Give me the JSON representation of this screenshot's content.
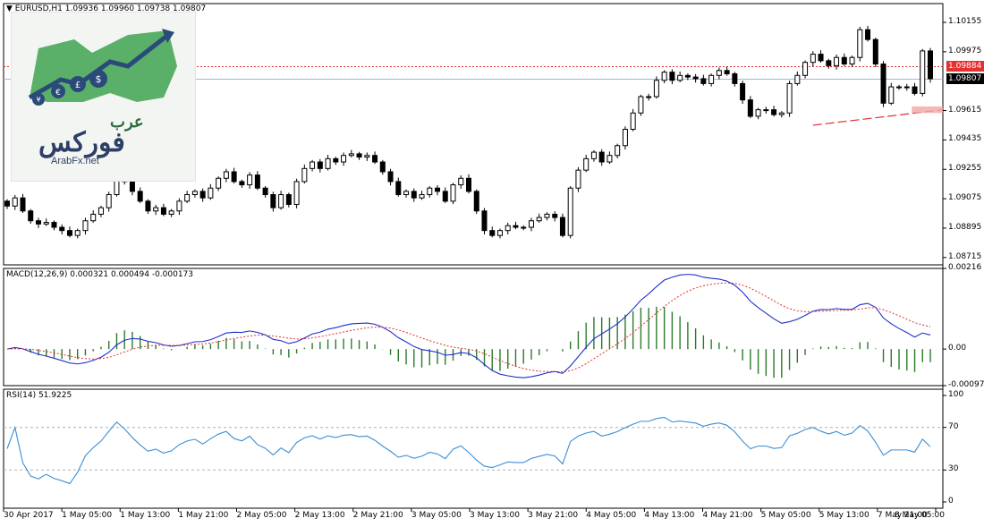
{
  "chart_header": {
    "text": "EURUSD,H1  1.09936 1.09960 1.09738 1.09807"
  },
  "macd_title": "MACD(12,26,9) 0.000321 0.000494 -0.000173",
  "rsi_title": "RSI(14) 51.9225",
  "logo": {
    "text_top": "عرب",
    "text_main": "فوركس",
    "url": "ArabFx.net"
  },
  "colors": {
    "bull": "#ffffff",
    "bear": "#000000",
    "macd_line": "#1f2fcc",
    "signal": "#e03030",
    "hist": "#2b7a2b",
    "rsi": "#3a8fd6",
    "hline_red": "#e03030",
    "bid": "#a9b7c6"
  },
  "chart_data": [
    {
      "type": "candlestick",
      "symbol": "EURUSD",
      "timeframe": "H1",
      "y_ticks": [
        "1.10155",
        "1.09975",
        "1.09615",
        "1.09435",
        "1.09255",
        "1.09075",
        "1.08895",
        "1.08715"
      ],
      "ylim": [
        1.0867,
        1.1027
      ],
      "x_ticks": [
        "30 Apr 2017",
        "1 May 05:00",
        "1 May 13:00",
        "1 May 21:00",
        "2 May 05:00",
        "2 May 13:00",
        "2 May 21:00",
        "3 May 05:00",
        "3 May 13:00",
        "3 May 21:00",
        "4 May 05:00",
        "4 May 13:00",
        "4 May 21:00",
        "5 May 05:00",
        "5 May 13:00",
        "7 May 21:00",
        "8 May 05:00"
      ],
      "price_tags": {
        "resistance": "1.09884",
        "current": "1.09807"
      },
      "closes": [
        1.0903,
        1.0908,
        1.09,
        1.0894,
        1.0892,
        1.0893,
        1.089,
        1.0888,
        1.0885,
        1.0888,
        1.0894,
        1.0898,
        1.0902,
        1.091,
        1.0922,
        1.0918,
        1.0912,
        1.0906,
        1.09,
        1.0902,
        1.0898,
        1.09,
        1.0906,
        1.091,
        1.0912,
        1.0908,
        1.0914,
        1.092,
        1.0924,
        1.0918,
        1.0916,
        1.0922,
        1.0914,
        1.091,
        1.0902,
        1.091,
        1.0904,
        1.0918,
        1.0926,
        1.093,
        1.0926,
        1.0932,
        1.093,
        1.0934,
        1.0935,
        1.0933,
        1.0934,
        1.093,
        1.0924,
        1.0918,
        1.091,
        1.0912,
        1.0908,
        1.091,
        1.0914,
        1.0912,
        1.0906,
        1.0916,
        1.092,
        1.0912,
        1.09,
        1.0888,
        1.0885,
        1.0888,
        1.0891,
        1.089,
        1.089,
        1.0894,
        1.0896,
        1.0898,
        1.0896,
        1.0885,
        1.0914,
        1.0925,
        1.0932,
        1.0936,
        1.093,
        1.0934,
        1.094,
        1.095,
        1.096,
        1.097,
        1.097,
        1.098,
        1.0985,
        1.098,
        1.0983,
        1.0982,
        1.0981,
        1.0978,
        1.0983,
        1.0986,
        1.0984,
        1.0978,
        1.0968,
        1.0958,
        1.0962,
        1.0962,
        1.0959,
        1.096,
        1.0978,
        1.0983,
        1.0991,
        1.0996,
        1.0992,
        1.0989,
        1.0994,
        1.099,
        1.0994,
        1.1011,
        1.1005,
        1.099,
        1.0966,
        1.0976,
        1.0976,
        1.0976,
        1.0972,
        1.0998,
        1.0981
      ],
      "macd_ticks": [
        "0.00216",
        "0.00",
        "-0.000979"
      ],
      "macd": {
        "name": "MACD(12,26,9)",
        "last": [
          0.000321,
          0.000494,
          -0.000173
        ]
      },
      "rsi_ticks": [
        "100",
        "70",
        "30",
        "0"
      ],
      "rsi": {
        "name": "RSI(14)",
        "last": 51.9225,
        "levels": [
          70,
          30
        ]
      }
    }
  ]
}
